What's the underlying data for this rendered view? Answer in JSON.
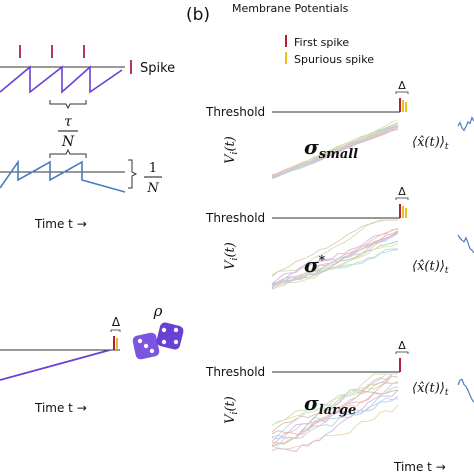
{
  "panel_b": {
    "label": "(b)",
    "title": "Membrane Potentials",
    "legend": {
      "first": "First spike",
      "spurious": "Spurious spike"
    }
  },
  "panel_a": {
    "spike_label": "Spike",
    "tau": "τ",
    "n": "N",
    "one": "1",
    "time_label": "Time t →",
    "delta": "Δ",
    "rho": "ρ"
  },
  "rows": [
    {
      "threshold": "Threshold",
      "ylabel": "V",
      "ysub": "i",
      "yarg": "(t)",
      "delta": "Δ",
      "sigma": "σ",
      "sigma_sub": "small",
      "sigma_sup": "",
      "xhat": "⟨x̂(t)⟩",
      "xhat_sub": "t"
    },
    {
      "threshold": "Threshold",
      "ylabel": "V",
      "ysub": "i",
      "yarg": "(t)",
      "delta": "Δ",
      "sigma": "σ",
      "sigma_sub": "",
      "sigma_sup": "*",
      "xhat": "⟨x̂(t)⟩",
      "xhat_sub": "t"
    },
    {
      "threshold": "Threshold",
      "ylabel": "V",
      "ysub": "i",
      "yarg": "(t)",
      "delta": "Δ",
      "sigma": "σ",
      "sigma_sub": "large",
      "sigma_sup": "",
      "xhat": "⟨x̂(t)⟩",
      "xhat_sub": "t"
    }
  ],
  "bottom_time": "Time t →",
  "colors": {
    "purple": "#6a3fd4",
    "blue": "#4a7fc0",
    "red": "#b0203a",
    "yellow": "#e8c01a",
    "gray": "#333333"
  }
}
